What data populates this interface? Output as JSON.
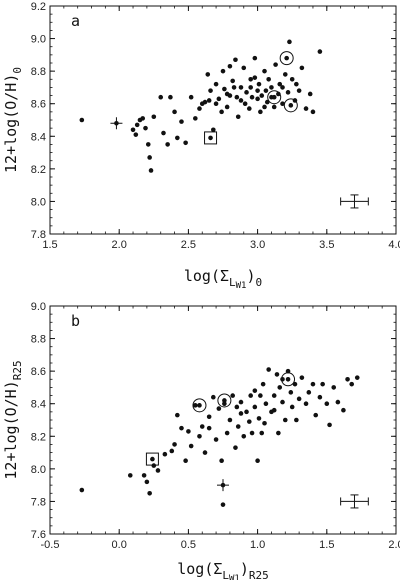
{
  "chart_data": [
    {
      "type": "scatter",
      "panel": "a",
      "xlabel": "log(Σ_LW1)_0",
      "xlabel_parts": {
        "pre": "log(",
        "sigma": "Σ",
        "sub1": "L",
        "sub2": "W1",
        "post": ")",
        "post_sub": "0"
      },
      "ylabel": "12+log(O/H)_0",
      "ylabel_parts": {
        "main": "12+log(O/H)",
        "sub": "0"
      },
      "xlim": [
        1.5,
        4.0
      ],
      "ylim": [
        7.8,
        9.2
      ],
      "x_ticks": [
        "1.5",
        "2.0",
        "2.5",
        "3.0",
        "3.5",
        "4.0"
      ],
      "y_ticks": [
        "7.8",
        "8.0",
        "8.2",
        "8.4",
        "8.6",
        "8.8",
        "9.0",
        "9.2"
      ],
      "grid": false,
      "points": [
        [
          1.73,
          8.5
        ],
        [
          2.1,
          8.44
        ],
        [
          2.12,
          8.41
        ],
        [
          2.13,
          8.47
        ],
        [
          2.15,
          8.5
        ],
        [
          2.17,
          8.51
        ],
        [
          2.19,
          8.45
        ],
        [
          2.21,
          8.35
        ],
        [
          2.22,
          8.27
        ],
        [
          2.23,
          8.19
        ],
        [
          2.25,
          8.52
        ],
        [
          2.3,
          8.64
        ],
        [
          2.32,
          8.42
        ],
        [
          2.35,
          8.35
        ],
        [
          2.37,
          8.64
        ],
        [
          2.4,
          8.55
        ],
        [
          2.42,
          8.39
        ],
        [
          2.45,
          8.49
        ],
        [
          2.48,
          8.36
        ],
        [
          2.52,
          8.64
        ],
        [
          2.55,
          8.51
        ],
        [
          2.58,
          8.57
        ],
        [
          2.6,
          8.6
        ],
        [
          2.62,
          8.61
        ],
        [
          2.64,
          8.78
        ],
        [
          2.66,
          8.68
        ],
        [
          2.68,
          8.44
        ],
        [
          2.7,
          8.72
        ],
        [
          2.72,
          8.63
        ],
        [
          2.74,
          8.55
        ],
        [
          2.75,
          8.8
        ],
        [
          2.76,
          8.69
        ],
        [
          2.78,
          8.58
        ],
        [
          2.8,
          8.83
        ],
        [
          2.82,
          8.74
        ],
        [
          2.84,
          8.87
        ],
        [
          2.85,
          8.64
        ],
        [
          2.86,
          8.52
        ],
        [
          2.88,
          8.7
        ],
        [
          2.9,
          8.82
        ],
        [
          2.91,
          8.6
        ],
        [
          2.92,
          8.67
        ],
        [
          2.94,
          8.57
        ],
        [
          2.95,
          8.75
        ],
        [
          2.96,
          8.64
        ],
        [
          2.98,
          8.88
        ],
        [
          3.0,
          8.63
        ],
        [
          3.01,
          8.72
        ],
        [
          3.02,
          8.55
        ],
        [
          3.03,
          8.65
        ],
        [
          3.05,
          8.8
        ],
        [
          3.06,
          8.68
        ],
        [
          3.07,
          8.61
        ],
        [
          3.08,
          8.75
        ],
        [
          3.1,
          8.7
        ],
        [
          3.12,
          8.58
        ],
        [
          3.13,
          8.84
        ],
        [
          3.15,
          8.66
        ],
        [
          3.16,
          8.72
        ],
        [
          3.18,
          8.6
        ],
        [
          3.2,
          8.78
        ],
        [
          3.22,
          8.67
        ],
        [
          3.23,
          8.98
        ],
        [
          3.25,
          8.75
        ],
        [
          3.27,
          8.62
        ],
        [
          3.3,
          8.68
        ],
        [
          3.32,
          8.82
        ],
        [
          3.35,
          8.57
        ],
        [
          3.38,
          8.66
        ],
        [
          3.4,
          8.55
        ],
        [
          3.45,
          8.92
        ],
        [
          2.65,
          8.62
        ],
        [
          2.88,
          8.62
        ],
        [
          3.0,
          8.68
        ],
        [
          2.8,
          8.65
        ],
        [
          3.1,
          8.64
        ],
        [
          2.95,
          8.7
        ],
        [
          2.7,
          8.6
        ],
        [
          3.05,
          8.58
        ],
        [
          2.98,
          8.76
        ],
        [
          3.18,
          8.7
        ],
        [
          2.83,
          8.7
        ],
        [
          2.78,
          8.66
        ],
        [
          3.28,
          8.72
        ]
      ],
      "highlighted_circled": [
        [
          3.21,
          8.88
        ],
        [
          3.12,
          8.64
        ],
        [
          3.24,
          8.59
        ]
      ],
      "highlighted_boxed": [
        [
          2.66,
          8.39
        ]
      ],
      "highlighted_cross": [
        [
          1.98,
          8.48
        ]
      ],
      "error_bar": {
        "x": 3.7,
        "y": 8.0,
        "x_err": 0.1,
        "y_err": 0.04
      }
    },
    {
      "type": "scatter",
      "panel": "b",
      "xlabel": "log(Σ_LW1)_R25",
      "xlabel_parts": {
        "pre": "log(",
        "sigma": "Σ",
        "sub1": "L",
        "sub2": "W1",
        "post": ")",
        "post_sub": "R25"
      },
      "ylabel": "12+log(O/H)_R25",
      "ylabel_parts": {
        "main": "12+log(O/H)",
        "sub": "R25"
      },
      "xlim": [
        -0.5,
        2.0
      ],
      "ylim": [
        7.6,
        9.0
      ],
      "x_ticks": [
        "-0.5",
        "0.0",
        "0.5",
        "1.0",
        "1.5",
        "2.0"
      ],
      "y_ticks": [
        "7.6",
        "7.8",
        "8.0",
        "8.2",
        "8.4",
        "8.6",
        "8.8",
        "9.0"
      ],
      "grid": false,
      "points": [
        [
          -0.27,
          7.87
        ],
        [
          0.08,
          7.96
        ],
        [
          0.18,
          7.96
        ],
        [
          0.2,
          7.92
        ],
        [
          0.22,
          7.85
        ],
        [
          0.25,
          8.02
        ],
        [
          0.28,
          7.99
        ],
        [
          0.33,
          8.09
        ],
        [
          0.38,
          8.11
        ],
        [
          0.4,
          8.15
        ],
        [
          0.42,
          8.33
        ],
        [
          0.45,
          8.25
        ],
        [
          0.48,
          8.05
        ],
        [
          0.5,
          8.23
        ],
        [
          0.52,
          8.14
        ],
        [
          0.55,
          8.39
        ],
        [
          0.58,
          8.2
        ],
        [
          0.6,
          8.26
        ],
        [
          0.62,
          8.1
        ],
        [
          0.65,
          8.32
        ],
        [
          0.68,
          8.44
        ],
        [
          0.7,
          8.18
        ],
        [
          0.72,
          8.37
        ],
        [
          0.74,
          8.05
        ],
        [
          0.75,
          7.78
        ],
        [
          0.76,
          8.4
        ],
        [
          0.78,
          8.22
        ],
        [
          0.8,
          8.3
        ],
        [
          0.82,
          8.45
        ],
        [
          0.84,
          8.13
        ],
        [
          0.85,
          8.38
        ],
        [
          0.86,
          8.26
        ],
        [
          0.88,
          8.41
        ],
        [
          0.9,
          8.2
        ],
        [
          0.92,
          8.35
        ],
        [
          0.94,
          8.29
        ],
        [
          0.95,
          8.45
        ],
        [
          0.96,
          8.22
        ],
        [
          0.98,
          8.38
        ],
        [
          1.0,
          8.05
        ],
        [
          1.01,
          8.31
        ],
        [
          1.02,
          8.45
        ],
        [
          1.04,
          8.52
        ],
        [
          1.05,
          8.28
        ],
        [
          1.06,
          8.4
        ],
        [
          1.08,
          8.61
        ],
        [
          1.1,
          8.35
        ],
        [
          1.12,
          8.45
        ],
        [
          1.14,
          8.58
        ],
        [
          1.15,
          8.22
        ],
        [
          1.16,
          8.5
        ],
        [
          1.18,
          8.41
        ],
        [
          1.2,
          8.3
        ],
        [
          1.22,
          8.6
        ],
        [
          1.24,
          8.47
        ],
        [
          1.25,
          8.38
        ],
        [
          1.27,
          8.52
        ],
        [
          1.3,
          8.43
        ],
        [
          1.32,
          8.56
        ],
        [
          1.35,
          8.4
        ],
        [
          1.37,
          8.47
        ],
        [
          1.4,
          8.52
        ],
        [
          1.42,
          8.33
        ],
        [
          1.45,
          8.44
        ],
        [
          1.47,
          8.52
        ],
        [
          1.5,
          8.4
        ],
        [
          1.52,
          8.27
        ],
        [
          1.55,
          8.5
        ],
        [
          1.58,
          8.41
        ],
        [
          1.62,
          8.36
        ],
        [
          1.65,
          8.55
        ],
        [
          1.68,
          8.52
        ],
        [
          1.72,
          8.56
        ],
        [
          0.98,
          8.48
        ],
        [
          1.12,
          8.36
        ],
        [
          0.88,
          8.34
        ],
        [
          1.03,
          8.22
        ],
        [
          0.65,
          8.25
        ],
        [
          1.28,
          8.3
        ],
        [
          1.18,
          8.55
        ]
      ],
      "highlighted_circled": [
        [
          0.58,
          8.39
        ],
        [
          0.76,
          8.42
        ],
        [
          1.22,
          8.55
        ]
      ],
      "highlighted_boxed": [
        [
          0.24,
          8.06
        ]
      ],
      "highlighted_cross": [
        [
          0.75,
          7.9
        ]
      ],
      "error_bar": {
        "x": 1.7,
        "y": 7.8,
        "x_err": 0.1,
        "y_err": 0.04
      }
    }
  ]
}
